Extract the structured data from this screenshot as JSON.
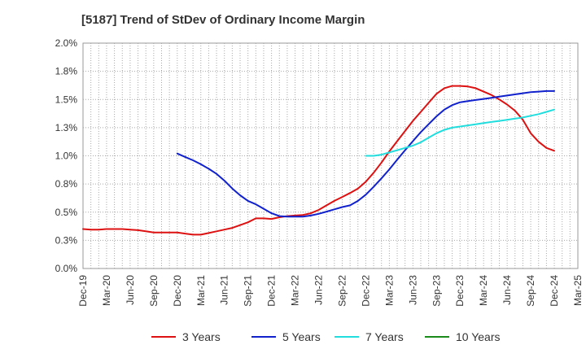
{
  "chart_data": {
    "type": "line",
    "title": "[5187]  Trend of StDev of Ordinary Income Margin",
    "xlabel": "",
    "ylabel": "",
    "x_ticks": [
      "Dec-19",
      "Mar-20",
      "Jun-20",
      "Sep-20",
      "Dec-20",
      "Mar-21",
      "Jun-21",
      "Sep-21",
      "Dec-21",
      "Mar-22",
      "Jun-22",
      "Sep-22",
      "Dec-22",
      "Mar-23",
      "Jun-23",
      "Sep-23",
      "Dec-23",
      "Mar-24",
      "Jun-24",
      "Sep-24",
      "Dec-24",
      "Mar-25"
    ],
    "y_ticks": [
      "0.0%",
      "0.3%",
      "0.5%",
      "0.8%",
      "1.0%",
      "1.3%",
      "1.5%",
      "1.8%",
      "2.0%"
    ],
    "y_tick_values": [
      0,
      0.25,
      0.5,
      0.75,
      1.0,
      1.25,
      1.5,
      1.75,
      2.0
    ],
    "ylim": [
      0,
      2.0
    ],
    "grid": true,
    "legend_position": "bottom",
    "series": [
      {
        "name": "3 Years",
        "color": "#dd1111",
        "x": [
          "Dec-19",
          "Jan-20",
          "Feb-20",
          "Mar-20",
          "Apr-20",
          "May-20",
          "Jun-20",
          "Jul-20",
          "Aug-20",
          "Sep-20",
          "Oct-20",
          "Nov-20",
          "Dec-20",
          "Jan-21",
          "Feb-21",
          "Mar-21",
          "Apr-21",
          "May-21",
          "Jun-21",
          "Jul-21",
          "Aug-21",
          "Sep-21",
          "Oct-21",
          "Nov-21",
          "Dec-21",
          "Jan-22",
          "Feb-22",
          "Mar-22",
          "Apr-22",
          "May-22",
          "Jun-22",
          "Jul-22",
          "Aug-22",
          "Sep-22",
          "Oct-22",
          "Nov-22",
          "Dec-22",
          "Jan-23",
          "Feb-23",
          "Mar-23",
          "Apr-23",
          "May-23",
          "Jun-23",
          "Jul-23",
          "Aug-23",
          "Sep-23",
          "Oct-23",
          "Nov-23",
          "Dec-23",
          "Jan-24",
          "Feb-24",
          "Mar-24",
          "Apr-24",
          "May-24",
          "Jun-24",
          "Jul-24",
          "Aug-24",
          "Sep-24",
          "Oct-24",
          "Nov-24",
          "Dec-24"
        ],
        "values": [
          0.35,
          0.345,
          0.345,
          0.35,
          0.35,
          0.35,
          0.345,
          0.34,
          0.33,
          0.32,
          0.32,
          0.32,
          0.32,
          0.31,
          0.3,
          0.3,
          0.315,
          0.33,
          0.345,
          0.36,
          0.385,
          0.41,
          0.445,
          0.445,
          0.44,
          0.455,
          0.465,
          0.47,
          0.475,
          0.49,
          0.52,
          0.56,
          0.6,
          0.635,
          0.67,
          0.71,
          0.77,
          0.85,
          0.94,
          1.04,
          1.13,
          1.22,
          1.31,
          1.39,
          1.47,
          1.55,
          1.6,
          1.62,
          1.62,
          1.615,
          1.6,
          1.57,
          1.54,
          1.5,
          1.455,
          1.4,
          1.32,
          1.2,
          1.125,
          1.07,
          1.045
        ]
      },
      {
        "name": "5 Years",
        "color": "#1122cc",
        "x": [
          "Dec-20",
          "Jan-21",
          "Feb-21",
          "Mar-21",
          "Apr-21",
          "May-21",
          "Jun-21",
          "Jul-21",
          "Aug-21",
          "Sep-21",
          "Oct-21",
          "Nov-21",
          "Dec-21",
          "Jan-22",
          "Feb-22",
          "Mar-22",
          "Apr-22",
          "May-22",
          "Jun-22",
          "Jul-22",
          "Aug-22",
          "Sep-22",
          "Oct-22",
          "Nov-22",
          "Dec-22",
          "Jan-23",
          "Feb-23",
          "Mar-23",
          "Apr-23",
          "May-23",
          "Jun-23",
          "Jul-23",
          "Aug-23",
          "Sep-23",
          "Oct-23",
          "Nov-23",
          "Dec-23",
          "Jan-24",
          "Feb-24",
          "Mar-24",
          "Apr-24",
          "May-24",
          "Jun-24",
          "Jul-24",
          "Aug-24",
          "Sep-24",
          "Oct-24",
          "Nov-24",
          "Dec-24"
        ],
        "values": [
          1.02,
          0.99,
          0.96,
          0.925,
          0.885,
          0.84,
          0.78,
          0.71,
          0.65,
          0.6,
          0.57,
          0.53,
          0.49,
          0.465,
          0.46,
          0.46,
          0.46,
          0.47,
          0.485,
          0.505,
          0.525,
          0.545,
          0.56,
          0.6,
          0.655,
          0.725,
          0.8,
          0.88,
          0.965,
          1.05,
          1.13,
          1.21,
          1.28,
          1.35,
          1.41,
          1.45,
          1.475,
          1.485,
          1.495,
          1.505,
          1.515,
          1.525,
          1.535,
          1.545,
          1.555,
          1.565,
          1.57,
          1.575,
          1.575
        ]
      },
      {
        "name": "7 Years",
        "color": "#22dddd",
        "x": [
          "Dec-22",
          "Jan-23",
          "Feb-23",
          "Mar-23",
          "Apr-23",
          "May-23",
          "Jun-23",
          "Jul-23",
          "Aug-23",
          "Sep-23",
          "Oct-23",
          "Nov-23",
          "Dec-23",
          "Jan-24",
          "Feb-24",
          "Mar-24",
          "Apr-24",
          "May-24",
          "Jun-24",
          "Jul-24",
          "Aug-24",
          "Sep-24",
          "Oct-24",
          "Nov-24",
          "Dec-24"
        ],
        "values": [
          1.0,
          1.0,
          1.01,
          1.03,
          1.05,
          1.07,
          1.09,
          1.12,
          1.16,
          1.2,
          1.23,
          1.25,
          1.26,
          1.27,
          1.28,
          1.29,
          1.3,
          1.31,
          1.32,
          1.33,
          1.34,
          1.355,
          1.37,
          1.39,
          1.41
        ]
      },
      {
        "name": "10 Years",
        "color": "#1a8a1a",
        "x": [],
        "values": []
      }
    ]
  }
}
